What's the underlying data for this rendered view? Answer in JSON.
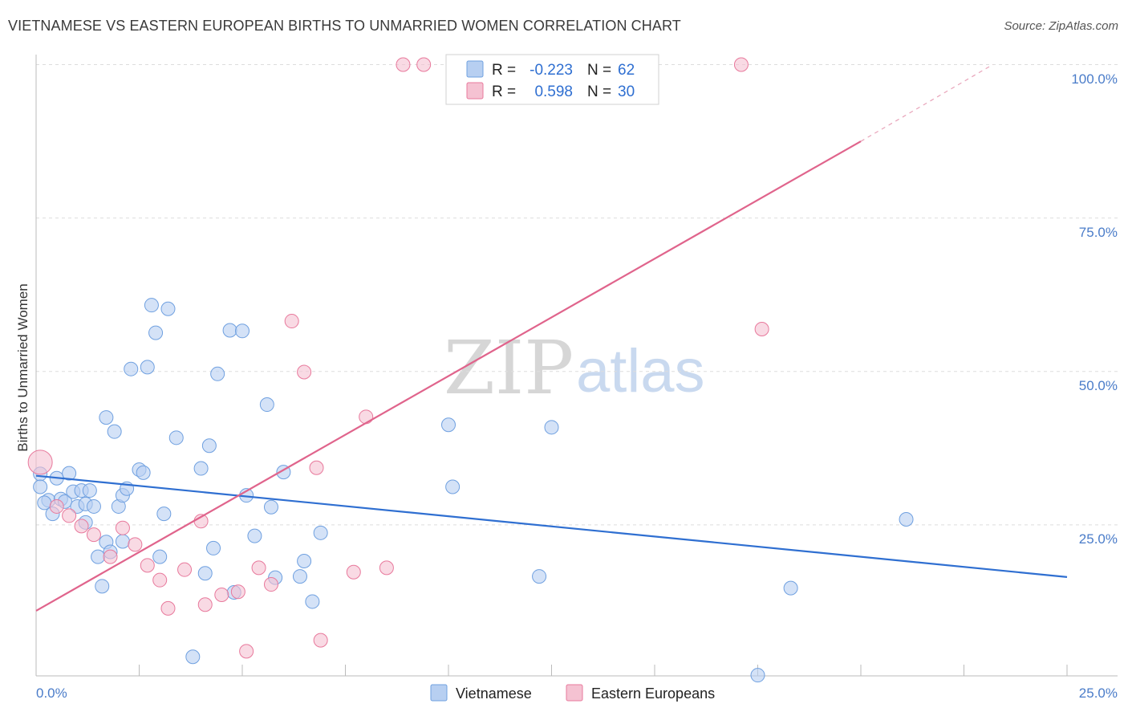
{
  "title": "VIETNAMESE VS EASTERN EUROPEAN BIRTHS TO UNMARRIED WOMEN CORRELATION CHART",
  "source": "Source: ZipAtlas.com",
  "watermark": {
    "zip": "ZIP",
    "atlas": "atlas"
  },
  "colors": {
    "blue": "#6fa0e0",
    "blue_fill": "#b7cff1",
    "pink": "#e8799c",
    "pink_fill": "#f5c2d2",
    "blue_line": "#2f6fd1",
    "pink_line": "#e0648c"
  },
  "legend": {
    "rows": [
      {
        "r_label": "R =",
        "r_value": "-0.223",
        "n_label": "N =",
        "n_value": "62"
      },
      {
        "r_label": "R =",
        "r_value": "0.598",
        "n_label": "N =",
        "n_value": "30"
      }
    ]
  },
  "bottom_legend": [
    "Vietnamese",
    "Eastern Europeans"
  ],
  "chart_data": {
    "type": "scatter",
    "title": "VIETNAMESE VS EASTERN EUROPEAN BIRTHS TO UNMARRIED WOMEN CORRELATION CHART",
    "ylabel": "Births to Unmarried Women",
    "xlabel": "",
    "x_ticks": [
      "0.0%",
      "25.0%"
    ],
    "y_ticks": [
      "100.0%",
      "75.0%",
      "50.0%",
      "25.0%"
    ],
    "xlim": [
      0,
      25
    ],
    "ylim": [
      0,
      103
    ],
    "grid": true,
    "legend_position": "top-center",
    "series": [
      {
        "name": "Vietnamese",
        "r": -0.223,
        "n": 62,
        "trend": {
          "x": [
            0,
            25
          ],
          "y": [
            33.0,
            16.5
          ]
        },
        "points": [
          [
            0.1,
            33.3
          ],
          [
            0.1,
            31.2
          ],
          [
            0.3,
            29.0
          ],
          [
            0.4,
            26.8
          ],
          [
            0.5,
            32.6
          ],
          [
            0.6,
            29.2
          ],
          [
            0.7,
            28.8
          ],
          [
            0.8,
            33.4
          ],
          [
            0.9,
            30.4
          ],
          [
            1.0,
            28.0
          ],
          [
            1.1,
            30.6
          ],
          [
            1.2,
            28.4
          ],
          [
            1.2,
            25.4
          ],
          [
            1.3,
            30.6
          ],
          [
            1.4,
            28.0
          ],
          [
            1.5,
            19.8
          ],
          [
            1.6,
            15.0
          ],
          [
            1.7,
            22.2
          ],
          [
            1.7,
            42.5
          ],
          [
            1.8,
            20.6
          ],
          [
            1.9,
            40.2
          ],
          [
            2.0,
            28.0
          ],
          [
            2.1,
            22.3
          ],
          [
            2.1,
            29.8
          ],
          [
            2.2,
            30.9
          ],
          [
            2.3,
            50.4
          ],
          [
            2.5,
            34.0
          ],
          [
            2.6,
            33.5
          ],
          [
            2.7,
            50.7
          ],
          [
            2.8,
            60.8
          ],
          [
            2.9,
            56.3
          ],
          [
            3.0,
            19.8
          ],
          [
            3.1,
            26.8
          ],
          [
            3.2,
            60.2
          ],
          [
            3.4,
            39.2
          ],
          [
            3.8,
            3.5
          ],
          [
            4.0,
            34.2
          ],
          [
            4.1,
            17.1
          ],
          [
            4.2,
            37.9
          ],
          [
            4.3,
            21.2
          ],
          [
            4.4,
            49.6
          ],
          [
            4.7,
            56.7
          ],
          [
            4.8,
            14.0
          ],
          [
            5.0,
            56.6
          ],
          [
            5.1,
            29.8
          ],
          [
            5.3,
            23.2
          ],
          [
            5.6,
            44.6
          ],
          [
            5.7,
            27.9
          ],
          [
            5.8,
            16.4
          ],
          [
            6.0,
            33.6
          ],
          [
            6.4,
            16.6
          ],
          [
            6.5,
            19.1
          ],
          [
            6.7,
            12.5
          ],
          [
            6.9,
            23.7
          ],
          [
            10.0,
            41.3
          ],
          [
            10.1,
            31.2
          ],
          [
            12.2,
            16.6
          ],
          [
            12.5,
            40.9
          ],
          [
            17.5,
            0.5
          ],
          [
            18.3,
            14.7
          ],
          [
            21.1,
            25.9
          ],
          [
            0.2,
            28.6
          ]
        ]
      },
      {
        "name": "Eastern Europeans",
        "r": 0.598,
        "n": 30,
        "trend": {
          "x": [
            0,
            20
          ],
          "y": [
            11.0,
            87.5
          ]
        },
        "trend_dashed": {
          "x": [
            20,
            23.2
          ],
          "y": [
            87.5,
            100.0
          ]
        },
        "points": [
          [
            0.1,
            35.2
          ],
          [
            0.5,
            28.0
          ],
          [
            0.8,
            26.5
          ],
          [
            1.1,
            24.8
          ],
          [
            1.4,
            23.4
          ],
          [
            1.8,
            19.8
          ],
          [
            2.1,
            24.5
          ],
          [
            2.4,
            21.8
          ],
          [
            2.7,
            18.4
          ],
          [
            3.0,
            16.0
          ],
          [
            3.2,
            11.4
          ],
          [
            3.6,
            17.7
          ],
          [
            4.0,
            25.6
          ],
          [
            4.1,
            12.0
          ],
          [
            4.5,
            13.6
          ],
          [
            4.9,
            14.1
          ],
          [
            5.1,
            4.4
          ],
          [
            5.4,
            18.0
          ],
          [
            5.7,
            15.3
          ],
          [
            6.2,
            58.2
          ],
          [
            6.5,
            49.9
          ],
          [
            6.8,
            34.3
          ],
          [
            6.9,
            6.2
          ],
          [
            7.7,
            17.3
          ],
          [
            8.0,
            42.6
          ],
          [
            8.5,
            18.0
          ],
          [
            8.9,
            100.0
          ],
          [
            9.4,
            100.0
          ],
          [
            17.1,
            100.0
          ],
          [
            17.6,
            56.9
          ]
        ]
      }
    ]
  }
}
